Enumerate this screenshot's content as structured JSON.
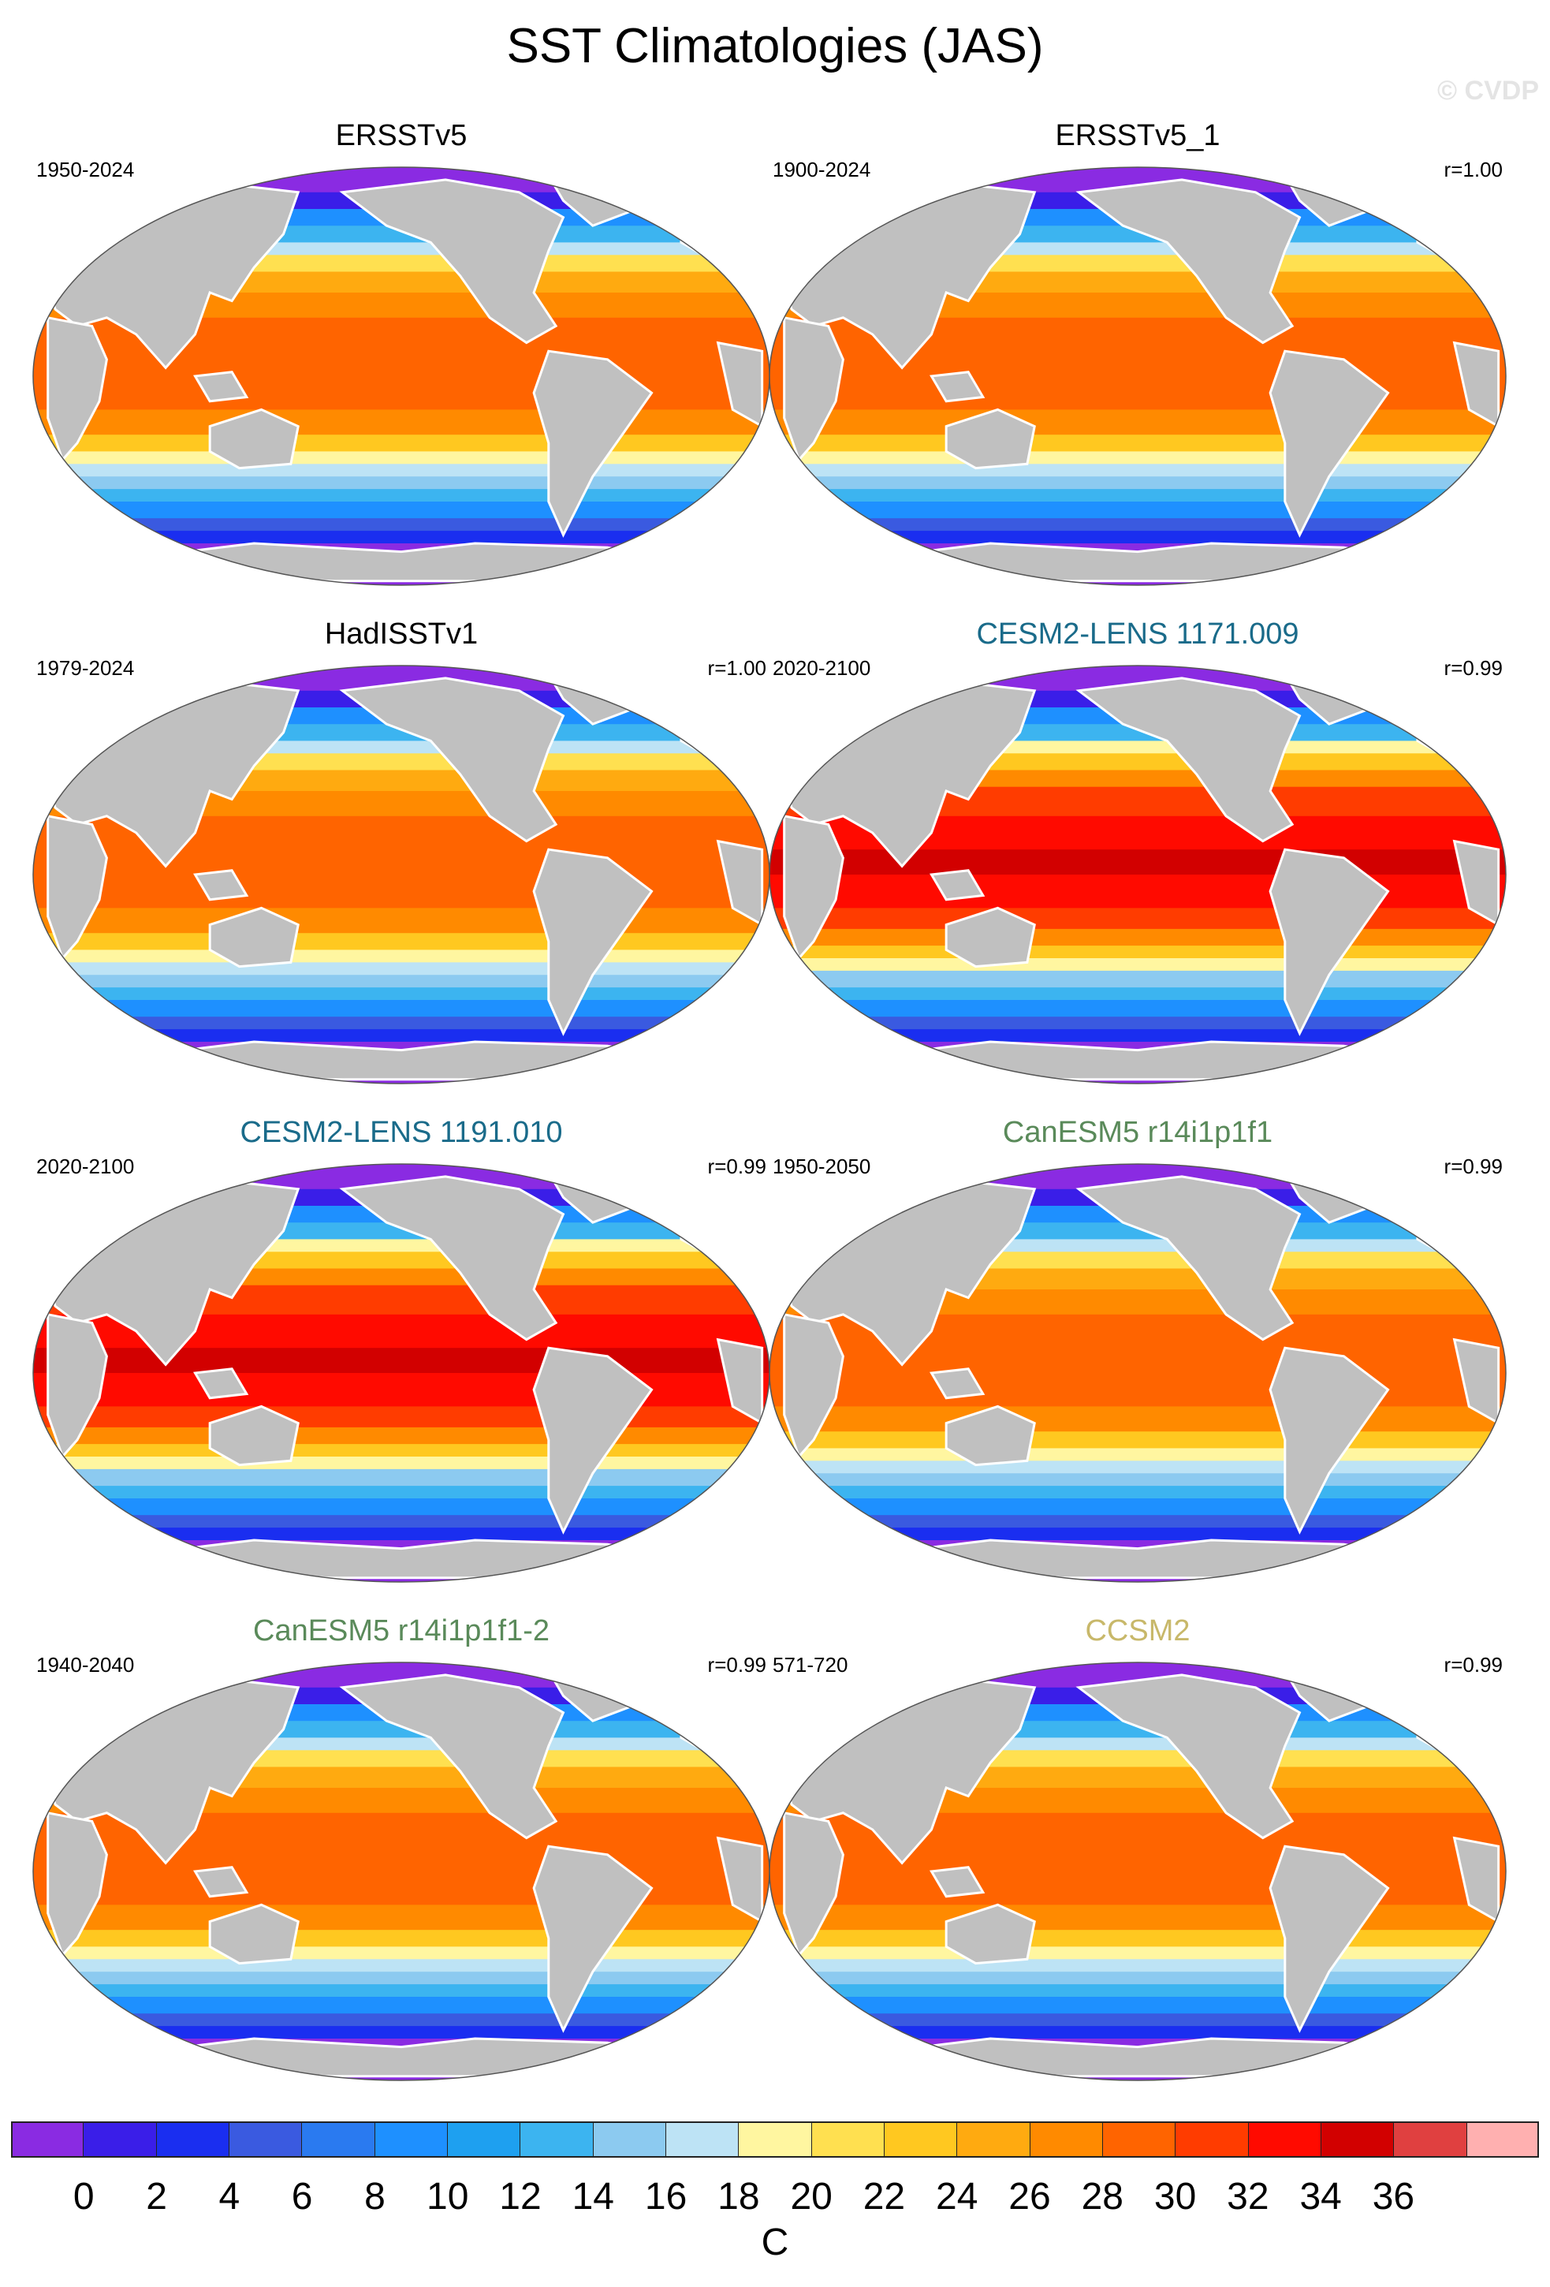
{
  "title": "SST Climatologies (JAS)",
  "watermark": "© CVDP",
  "panels": [
    {
      "title": "ERSSTv5",
      "period": "1950-2024",
      "corr": "",
      "title_color": "#000000",
      "warm": 0
    },
    {
      "title": "ERSSTv5_1",
      "period": "1900-2024",
      "corr": "r=1.00",
      "title_color": "#000000",
      "warm": 0
    },
    {
      "title": "HadISSTv1",
      "period": "1979-2024",
      "corr": "r=1.00",
      "title_color": "#000000",
      "warm": 0
    },
    {
      "title": "CESM2-LENS 1171.009",
      "period": "2020-2100",
      "corr": "r=0.99",
      "title_color": "#1a6b8a",
      "warm": 1
    },
    {
      "title": "CESM2-LENS 1191.010",
      "period": "2020-2100",
      "corr": "r=0.99",
      "title_color": "#1a6b8a",
      "warm": 1
    },
    {
      "title": "CanESM5 r14i1p1f1",
      "period": "1950-2050",
      "corr": "r=0.99",
      "title_color": "#5a8a5a",
      "warm": 0
    },
    {
      "title": "CanESM5 r14i1p1f1-2",
      "period": "1940-2040",
      "corr": "r=0.99",
      "title_color": "#5a8a5a",
      "warm": 0
    },
    {
      "title": "CCSM2",
      "period": "571-720",
      "corr": "r=0.99",
      "title_color": "#c8b86a",
      "warm": 0
    }
  ],
  "colorbar": {
    "colors": [
      "#8a2be2",
      "#3a1ee8",
      "#1a2ef0",
      "#3a5ae0",
      "#2a7af0",
      "#1e90ff",
      "#1ea0f0",
      "#3cb4f0",
      "#8ccaf0",
      "#bde3f5",
      "#fff6a0",
      "#ffe050",
      "#ffc820",
      "#ffaa10",
      "#ff8a00",
      "#ff6400",
      "#ff3c00",
      "#ff0a00",
      "#d20000",
      "#e04040",
      "#ffb0b0"
    ],
    "ticks": [
      "0",
      "2",
      "4",
      "6",
      "8",
      "10",
      "12",
      "14",
      "16",
      "18",
      "20",
      "22",
      "24",
      "26",
      "28",
      "30",
      "32",
      "34",
      "36"
    ],
    "unit": "C"
  }
}
